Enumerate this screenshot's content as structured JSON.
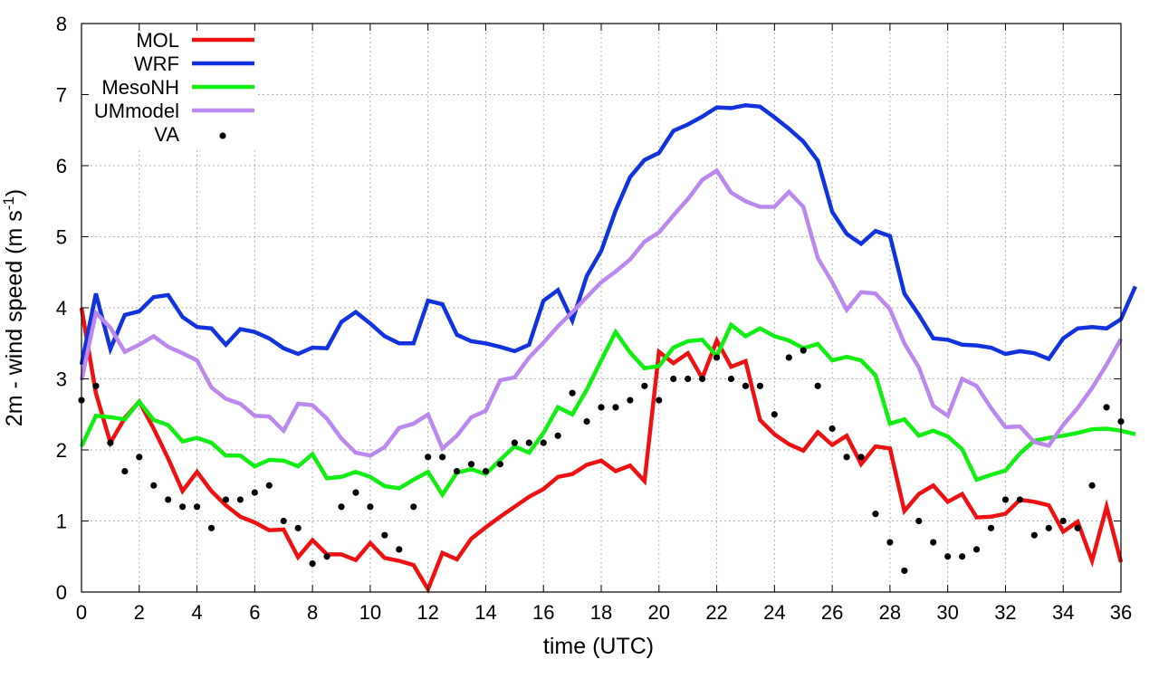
{
  "chart_data": {
    "type": "line",
    "title": "",
    "xlabel": "time (UTC)",
    "ylabel_main": "2m - wind speed  (m s",
    "ylabel_sup": "-1",
    "ylabel_close": ")",
    "xlim": [
      0,
      36
    ],
    "ylim": [
      0,
      8
    ],
    "xticks": [
      0,
      2,
      4,
      6,
      8,
      10,
      12,
      14,
      16,
      18,
      20,
      22,
      24,
      26,
      28,
      30,
      32,
      34,
      36
    ],
    "yticks": [
      0,
      1,
      2,
      3,
      4,
      5,
      6,
      7,
      8
    ],
    "grid": true,
    "legend_position": "top-left",
    "x_step": 0.5,
    "series": [
      {
        "name": "MOL",
        "style": "line",
        "color": "#ee1111",
        "values": [
          4.0,
          2.8,
          2.1,
          2.45,
          2.68,
          2.3,
          1.88,
          1.42,
          1.69,
          1.42,
          1.22,
          1.06,
          0.98,
          0.87,
          0.88,
          0.49,
          0.73,
          0.53,
          0.53,
          0.45,
          0.69,
          0.48,
          0.44,
          0.38,
          0.04,
          0.55,
          0.46,
          0.75,
          0.91,
          1.06,
          1.2,
          1.34,
          1.45,
          1.62,
          1.66,
          1.79,
          1.85,
          1.7,
          1.78,
          1.56,
          3.38,
          3.22,
          3.36,
          3.01,
          3.54,
          3.17,
          3.25,
          2.42,
          2.22,
          2.08,
          1.99,
          2.25,
          2.07,
          2.2,
          1.8,
          2.05,
          2.02,
          1.14,
          1.38,
          1.5,
          1.27,
          1.38,
          1.05,
          1.06,
          1.1,
          1.3,
          1.27,
          1.22,
          0.85,
          0.99,
          0.44,
          1.2,
          0.42
        ]
      },
      {
        "name": "WRF",
        "style": "line",
        "color": "#1133dd",
        "values": [
          3.2,
          4.2,
          3.42,
          3.9,
          3.95,
          4.15,
          4.18,
          3.87,
          3.73,
          3.71,
          3.48,
          3.7,
          3.66,
          3.57,
          3.43,
          3.35,
          3.44,
          3.43,
          3.8,
          3.94,
          3.78,
          3.6,
          3.5,
          3.5,
          4.1,
          4.05,
          3.62,
          3.53,
          3.5,
          3.45,
          3.39,
          3.48,
          4.1,
          4.25,
          3.82,
          4.45,
          4.8,
          5.37,
          5.84,
          6.08,
          6.18,
          6.49,
          6.58,
          6.69,
          6.82,
          6.81,
          6.85,
          6.83,
          6.68,
          6.52,
          6.34,
          6.07,
          5.35,
          5.04,
          4.9,
          5.08,
          5.01,
          4.2,
          3.9,
          3.57,
          3.55,
          3.48,
          3.47,
          3.44,
          3.35,
          3.39,
          3.36,
          3.28,
          3.57,
          3.71,
          3.73,
          3.71,
          3.84,
          4.3
        ]
      },
      {
        "name": "MesoNH",
        "style": "line",
        "color": "#11ee11",
        "values": [
          2.05,
          2.48,
          2.46,
          2.43,
          2.68,
          2.42,
          2.35,
          2.12,
          2.17,
          2.1,
          1.92,
          1.92,
          1.77,
          1.86,
          1.85,
          1.77,
          1.94,
          1.6,
          1.62,
          1.69,
          1.62,
          1.49,
          1.46,
          1.58,
          1.69,
          1.37,
          1.68,
          1.73,
          1.66,
          1.86,
          2.05,
          1.96,
          2.24,
          2.6,
          2.5,
          2.85,
          3.26,
          3.66,
          3.37,
          3.15,
          3.18,
          3.44,
          3.53,
          3.55,
          3.32,
          3.76,
          3.6,
          3.71,
          3.6,
          3.54,
          3.43,
          3.49,
          3.26,
          3.31,
          3.26,
          3.05,
          2.37,
          2.43,
          2.2,
          2.27,
          2.19,
          2.01,
          1.58,
          1.65,
          1.71,
          1.95,
          2.13,
          2.17,
          2.2,
          2.24,
          2.29,
          2.3,
          2.27,
          2.22
        ]
      },
      {
        "name": "UMmodel",
        "style": "line",
        "color": "#bb88ee",
        "values": [
          2.98,
          3.93,
          3.72,
          3.38,
          3.48,
          3.6,
          3.45,
          3.36,
          3.26,
          2.88,
          2.72,
          2.65,
          2.48,
          2.47,
          2.27,
          2.65,
          2.63,
          2.44,
          2.16,
          1.96,
          1.92,
          2.04,
          2.31,
          2.37,
          2.5,
          2.02,
          2.2,
          2.46,
          2.55,
          2.98,
          3.02,
          3.3,
          3.51,
          3.74,
          3.94,
          4.15,
          4.36,
          4.51,
          4.68,
          4.93,
          5.06,
          5.3,
          5.53,
          5.8,
          5.93,
          5.62,
          5.5,
          5.42,
          5.42,
          5.63,
          5.42,
          4.7,
          4.36,
          3.97,
          4.22,
          4.2,
          3.98,
          3.5,
          3.16,
          2.62,
          2.48,
          3.0,
          2.9,
          2.59,
          2.32,
          2.33,
          2.11,
          2.06,
          2.35,
          2.59,
          2.87,
          3.2,
          3.56
        ]
      },
      {
        "name": "VA",
        "style": "points",
        "color": "#000000",
        "values": [
          2.7,
          2.9,
          2.1,
          1.7,
          1.9,
          1.5,
          1.3,
          1.2,
          1.2,
          0.9,
          1.3,
          1.3,
          1.4,
          1.5,
          1.0,
          0.9,
          0.4,
          0.5,
          1.2,
          1.4,
          1.2,
          0.8,
          0.6,
          1.2,
          1.9,
          1.9,
          1.7,
          1.8,
          1.7,
          1.8,
          2.1,
          2.1,
          2.1,
          2.2,
          2.8,
          2.4,
          2.6,
          2.6,
          2.7,
          2.9,
          2.7,
          3.0,
          3.0,
          3.0,
          3.3,
          3.0,
          2.9,
          2.9,
          2.5,
          3.3,
          3.4,
          2.9,
          2.3,
          1.9,
          1.9,
          1.1,
          0.7,
          0.3,
          1.0,
          0.7,
          0.5,
          0.5,
          0.6,
          0.9,
          1.3,
          1.3,
          0.8,
          0.9,
          1.0,
          0.9,
          1.5,
          2.6,
          2.4
        ]
      }
    ]
  }
}
